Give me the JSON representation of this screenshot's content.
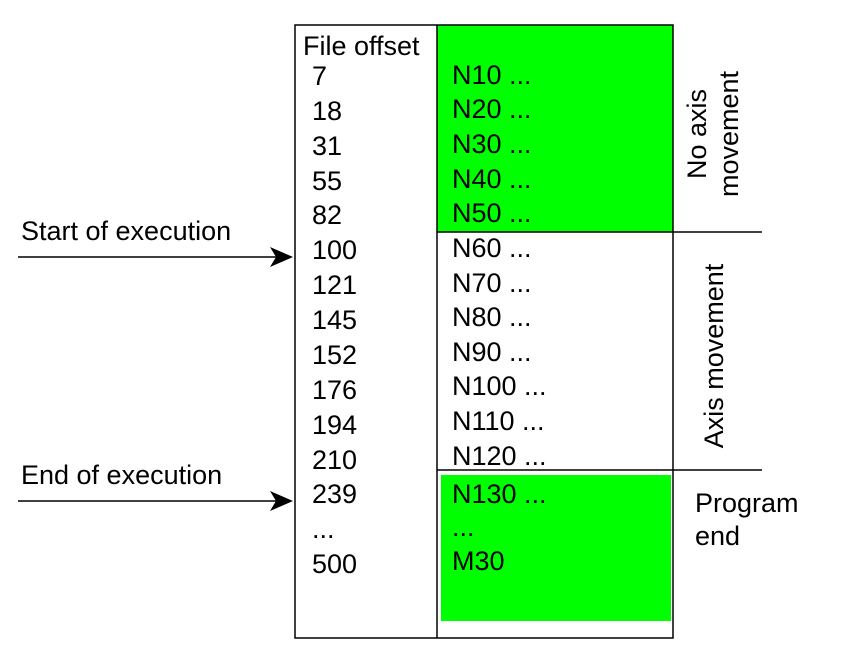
{
  "colors": {
    "highlight": "#00ff00",
    "line": "#000000",
    "background": "#ffffff"
  },
  "header": {
    "file_offset": "File offset"
  },
  "offsets": [
    "7",
    "18",
    "31",
    "55",
    "82",
    "100",
    "121",
    "145",
    "152",
    "176",
    "194",
    "210",
    "239",
    "...",
    "500"
  ],
  "blocks": [
    "N10 ...",
    "N20 ...",
    "N30 ...",
    "N40 ...",
    "N50 ...",
    "N60 ...",
    "N70 ...",
    "N80 ...",
    "N90 ...",
    "N100 ...",
    "N110 ...",
    "N120 ...",
    "N130 ...",
    "...",
    "M30"
  ],
  "arrows": {
    "start": "Start of execution",
    "end": "End of execution"
  },
  "sections": {
    "no_axis_line1": "No axis",
    "no_axis_line2": "movement",
    "axis_movement": "Axis movement",
    "program_end_line1": "Program",
    "program_end_line2": "end"
  }
}
